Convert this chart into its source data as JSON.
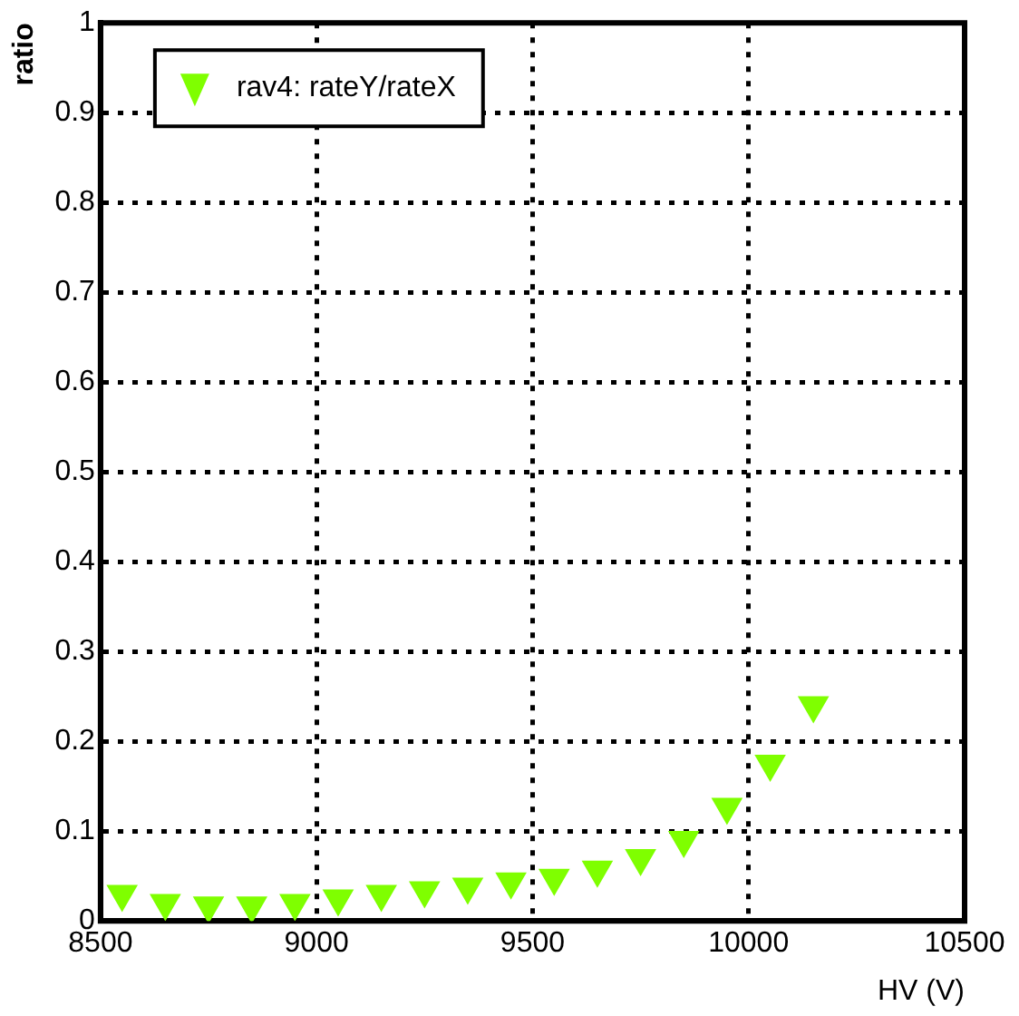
{
  "chart_data": {
    "type": "scatter",
    "xlabel": "HV (V)",
    "ylabel": "ratio",
    "x": [
      8550,
      8650,
      8750,
      8850,
      8950,
      9050,
      9150,
      9250,
      9350,
      9450,
      9550,
      9650,
      9750,
      9850,
      9950,
      10050,
      10150
    ],
    "series": [
      {
        "name": "rav4: rateY/rateX",
        "color": "#7fff00",
        "values": [
          0.03,
          0.02,
          0.017,
          0.017,
          0.02,
          0.025,
          0.03,
          0.034,
          0.038,
          0.044,
          0.048,
          0.057,
          0.07,
          0.09,
          0.127,
          0.175,
          0.24
        ]
      }
    ],
    "xlim": [
      8500,
      10500
    ],
    "xticks": [
      8500,
      9000,
      9500,
      10000,
      10500
    ],
    "ylim": [
      0,
      1
    ],
    "yticks": [
      0,
      0.1,
      0.2,
      0.3,
      0.4,
      0.5,
      0.6,
      0.7,
      0.8,
      0.9,
      1
    ],
    "grid": true,
    "legend": "top left",
    "marker": "triangle"
  }
}
